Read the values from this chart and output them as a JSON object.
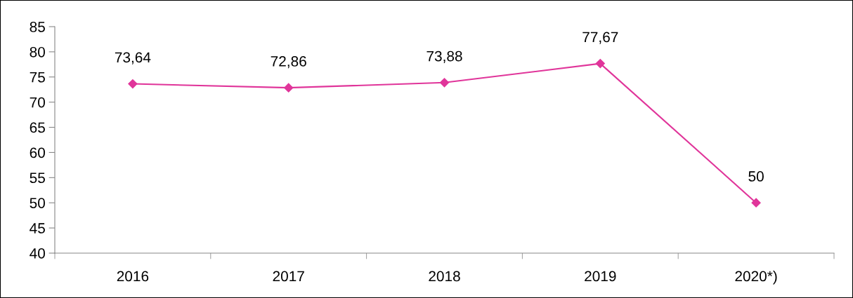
{
  "chart_data": {
    "type": "line",
    "categories": [
      "2016",
      "2017",
      "2018",
      "2019",
      "2020*)"
    ],
    "series": [
      {
        "color": "#e0359a",
        "values": [
          73.64,
          72.86,
          73.88,
          77.67,
          50
        ],
        "value_labels": [
          "73,64",
          "72,86",
          "73,88",
          "77,67",
          "50"
        ]
      }
    ],
    "ylim": [
      40,
      85
    ],
    "yticks": [
      40,
      45,
      50,
      55,
      60,
      65,
      70,
      75,
      80,
      85
    ],
    "marker": "diamond",
    "line_style": "solid",
    "grid": false,
    "legend": false
  }
}
